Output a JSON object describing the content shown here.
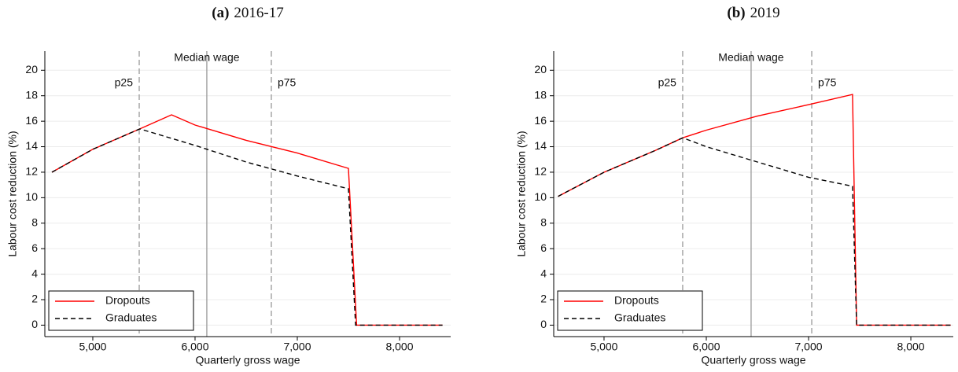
{
  "chart_data": [
    {
      "type": "line",
      "tag": "(a)",
      "title": "2016-17",
      "x_label": "Quarterly gross wage",
      "y_label": "Labour cost reduction (%)",
      "xlim": [
        4531,
        8500
      ],
      "ylim": [
        -0.9,
        21.5
      ],
      "xticks": [
        {
          "value": 5000,
          "label": "5,000"
        },
        {
          "value": 6000,
          "label": "6,000"
        },
        {
          "value": 7000,
          "label": "7,000"
        },
        {
          "value": 8000,
          "label": "8,000"
        }
      ],
      "yticks": [
        0,
        2,
        4,
        6,
        8,
        10,
        12,
        14,
        16,
        18,
        20
      ],
      "grid": true,
      "vlines": [
        {
          "value": 5454,
          "label": "p25",
          "style": "dashed"
        },
        {
          "value": 6115,
          "label": "Median wage",
          "style": "solid"
        },
        {
          "value": 6746,
          "label": "p75",
          "style": "dashed"
        }
      ],
      "legend": "lower left",
      "series": [
        {
          "name": "Dropouts",
          "color": "#ff0000",
          "dash": "solid",
          "x": [
            4600,
            5000,
            5460,
            5770,
            6000,
            6500,
            7000,
            7500,
            7580,
            8420
          ],
          "values": [
            12.0,
            13.8,
            15.4,
            16.5,
            15.7,
            14.5,
            13.5,
            12.3,
            0,
            0
          ]
        },
        {
          "name": "Graduates",
          "color": "#000000",
          "dash": "dashed",
          "x": [
            4600,
            5000,
            5460,
            6000,
            6500,
            7000,
            7500,
            7570,
            8420
          ],
          "values": [
            12.0,
            13.8,
            15.4,
            14.1,
            12.8,
            11.7,
            10.7,
            0,
            0
          ]
        }
      ]
    },
    {
      "type": "line",
      "tag": "(b)",
      "title": "2019",
      "x_label": "Quarterly gross wage",
      "y_label": "Labour cost reduction (%)",
      "xlim": [
        4508,
        8415
      ],
      "ylim": [
        -0.9,
        21.5
      ],
      "xticks": [
        {
          "value": 5000,
          "label": "5,000"
        },
        {
          "value": 6000,
          "label": "6,000"
        },
        {
          "value": 7000,
          "label": "7,000"
        },
        {
          "value": 8000,
          "label": "8,000"
        }
      ],
      "yticks": [
        0,
        2,
        4,
        6,
        8,
        10,
        12,
        14,
        16,
        18,
        20
      ],
      "grid": true,
      "vlines": [
        {
          "value": 5769,
          "label": "p25",
          "style": "dashed"
        },
        {
          "value": 6438,
          "label": "Median wage",
          "style": "solid"
        },
        {
          "value": 7031,
          "label": "p75",
          "style": "dashed"
        }
      ],
      "legend": "lower left",
      "series": [
        {
          "name": "Dropouts",
          "color": "#ff0000",
          "dash": "solid",
          "x": [
            4550,
            5000,
            5500,
            5770,
            6000,
            6500,
            7000,
            7430,
            7470,
            8390
          ],
          "values": [
            10.1,
            12.0,
            13.7,
            14.7,
            15.3,
            16.4,
            17.3,
            18.1,
            0,
            0
          ]
        },
        {
          "name": "Graduates",
          "color": "#000000",
          "dash": "dashed",
          "x": [
            4550,
            5000,
            5500,
            5770,
            6000,
            6500,
            7000,
            7430,
            7470,
            8390
          ],
          "values": [
            10.1,
            12.0,
            13.7,
            14.7,
            14.0,
            12.8,
            11.6,
            10.9,
            0,
            0
          ]
        }
      ]
    }
  ]
}
